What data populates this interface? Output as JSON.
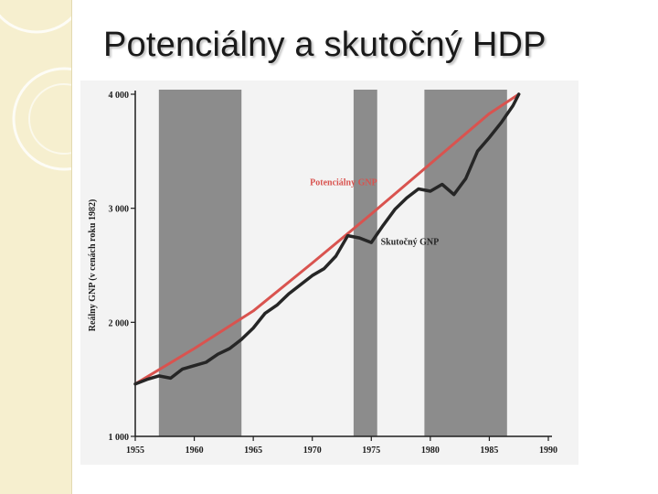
{
  "slide": {
    "title": "Potenciálny a skutočný HDP"
  },
  "colors": {
    "side_panel": "#f6efcf",
    "shade": "#8c8c8c",
    "potential_line": "#d9534f",
    "actual_line": "#262626"
  },
  "chart_data": {
    "type": "line",
    "title": "",
    "xlabel": "",
    "ylabel": "Reálny GNP (v cenách roku 1982)",
    "xlim": [
      1955,
      1990
    ],
    "ylim": [
      1000,
      4000
    ],
    "xticks": [
      {
        "value": 1955,
        "label": "1955"
      },
      {
        "value": 1960,
        "label": "1960"
      },
      {
        "value": 1965,
        "label": "1965"
      },
      {
        "value": 1970,
        "label": "1970"
      },
      {
        "value": 1975,
        "label": "1975"
      },
      {
        "value": 1980,
        "label": "1980"
      },
      {
        "value": 1985,
        "label": "1985"
      },
      {
        "value": 1990,
        "label": "1990"
      }
    ],
    "yticks": [
      {
        "value": 1000,
        "label": "1 000"
      },
      {
        "value": 2000,
        "label": "2 000"
      },
      {
        "value": 3000,
        "label": "3 000"
      },
      {
        "value": 4000,
        "label": "4 000"
      }
    ],
    "shaded_periods": [
      [
        1957,
        1964
      ],
      [
        1973.5,
        1975.5
      ],
      [
        1979.5,
        1986.5
      ]
    ],
    "series": [
      {
        "name": "Potenciálny GNP",
        "color": "#d9534f",
        "x": [
          1955,
          1960,
          1965,
          1970,
          1975,
          1980,
          1985,
          1987.5
        ],
        "y": [
          1460,
          1770,
          2100,
          2520,
          2950,
          3390,
          3830,
          4000
        ]
      },
      {
        "name": "Skutočný GNP",
        "color": "#262626",
        "x": [
          1955,
          1956,
          1957,
          1958,
          1959,
          1960,
          1961,
          1962,
          1963,
          1964,
          1965,
          1966,
          1967,
          1968,
          1969,
          1970,
          1971,
          1972,
          1973,
          1974,
          1975,
          1976,
          1977,
          1978,
          1979,
          1980,
          1981,
          1982,
          1983,
          1984,
          1985,
          1986,
          1987,
          1987.5
        ],
        "y": [
          1460,
          1500,
          1530,
          1510,
          1590,
          1620,
          1650,
          1720,
          1770,
          1850,
          1950,
          2080,
          2150,
          2250,
          2330,
          2410,
          2470,
          2580,
          2760,
          2740,
          2700,
          2850,
          2990,
          3090,
          3170,
          3150,
          3210,
          3120,
          3260,
          3500,
          3620,
          3750,
          3900,
          4000
        ]
      }
    ]
  }
}
